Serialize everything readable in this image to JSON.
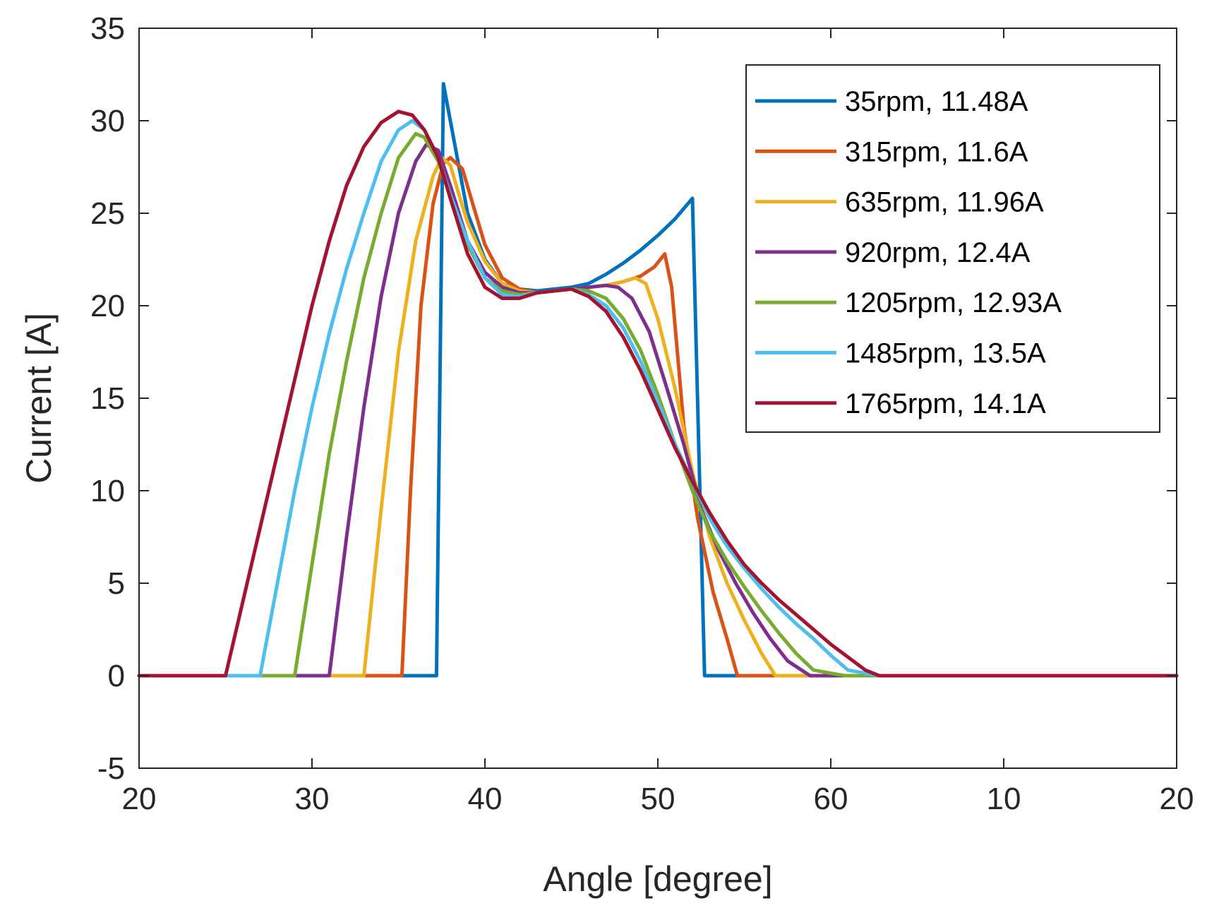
{
  "chart_data": {
    "type": "line",
    "title": "",
    "xlabel": "Angle [degree]",
    "ylabel": "Current [A]",
    "xlim": [
      0,
      60
    ],
    "ylim": [
      -5,
      35
    ],
    "x_ticks": [
      0,
      10,
      20,
      30,
      40,
      50,
      60
    ],
    "x_tick_labels": [
      "20",
      "30",
      "40",
      "50",
      "60",
      "10",
      "20"
    ],
    "y_ticks": [
      -5,
      0,
      5,
      10,
      15,
      20,
      25,
      30,
      35
    ],
    "y_tick_labels": [
      "-5",
      "0",
      "5",
      "10",
      "15",
      "20",
      "25",
      "30",
      "35"
    ],
    "grid": false,
    "legend_position": "top-right",
    "colors": {
      "axis": "#262626",
      "background": "#ffffff"
    },
    "series": [
      {
        "name": "35rpm, 11.48A",
        "color": "#0072BD",
        "points": [
          [
            0,
            0
          ],
          [
            17.2,
            0
          ],
          [
            17.6,
            32
          ],
          [
            18.2,
            29
          ],
          [
            19,
            25
          ],
          [
            20,
            22.5
          ],
          [
            21,
            21.2
          ],
          [
            22,
            20.9
          ],
          [
            23,
            20.8
          ],
          [
            24,
            20.9
          ],
          [
            25,
            21
          ],
          [
            26,
            21.2
          ],
          [
            27,
            21.7
          ],
          [
            28,
            22.3
          ],
          [
            29,
            23
          ],
          [
            30,
            23.8
          ],
          [
            31,
            24.7
          ],
          [
            32,
            25.8
          ],
          [
            32.7,
            0
          ],
          [
            60,
            0
          ]
        ]
      },
      {
        "name": "315rpm, 11.6A",
        "color": "#D95319",
        "points": [
          [
            0,
            0
          ],
          [
            15.2,
            0
          ],
          [
            15.7,
            10
          ],
          [
            16.3,
            20
          ],
          [
            17,
            25.5
          ],
          [
            17.6,
            27.7
          ],
          [
            18,
            28
          ],
          [
            18.7,
            27.4
          ],
          [
            19.3,
            25.5
          ],
          [
            20,
            23.3
          ],
          [
            21,
            21.5
          ],
          [
            22,
            20.9
          ],
          [
            23,
            20.7
          ],
          [
            24,
            20.8
          ],
          [
            25,
            20.9
          ],
          [
            26,
            21
          ],
          [
            27,
            21.1
          ],
          [
            28,
            21.3
          ],
          [
            29,
            21.6
          ],
          [
            29.8,
            22.1
          ],
          [
            30.4,
            22.8
          ],
          [
            30.8,
            21
          ],
          [
            31.5,
            13.5
          ],
          [
            32.3,
            8.5
          ],
          [
            33.2,
            4.5
          ],
          [
            34,
            2
          ],
          [
            34.6,
            0
          ],
          [
            60,
            0
          ]
        ]
      },
      {
        "name": "635rpm, 11.96A",
        "color": "#EDB120",
        "points": [
          [
            0,
            0
          ],
          [
            13,
            0
          ],
          [
            14,
            9
          ],
          [
            15,
            17.5
          ],
          [
            16,
            23.5
          ],
          [
            17,
            27
          ],
          [
            17.5,
            28
          ],
          [
            18,
            27.6
          ],
          [
            18.5,
            26
          ],
          [
            19,
            24.5
          ],
          [
            20,
            22.4
          ],
          [
            21,
            21.2
          ],
          [
            22,
            20.8
          ],
          [
            23,
            20.7
          ],
          [
            24,
            20.8
          ],
          [
            25,
            20.9
          ],
          [
            26,
            21
          ],
          [
            27,
            21.1
          ],
          [
            28,
            21.3
          ],
          [
            28.7,
            21.5
          ],
          [
            29.3,
            21.2
          ],
          [
            30,
            19.3
          ],
          [
            31,
            15.5
          ],
          [
            32,
            11
          ],
          [
            33,
            7.5
          ],
          [
            34,
            5
          ],
          [
            35,
            3
          ],
          [
            36,
            1.2
          ],
          [
            36.8,
            0
          ],
          [
            60,
            0
          ]
        ]
      },
      {
        "name": "920rpm, 12.4A",
        "color": "#7E2F8E",
        "points": [
          [
            0,
            0
          ],
          [
            11,
            0
          ],
          [
            12,
            7.5
          ],
          [
            13,
            14.5
          ],
          [
            14,
            20.5
          ],
          [
            15,
            25
          ],
          [
            16,
            27.8
          ],
          [
            16.6,
            28.7
          ],
          [
            17.3,
            28.4
          ],
          [
            18,
            26.5
          ],
          [
            19,
            23.5
          ],
          [
            20,
            21.8
          ],
          [
            21,
            21
          ],
          [
            22,
            20.7
          ],
          [
            23,
            20.7
          ],
          [
            24,
            20.8
          ],
          [
            25,
            20.9
          ],
          [
            26,
            21
          ],
          [
            27,
            21.1
          ],
          [
            27.7,
            21
          ],
          [
            28.5,
            20.4
          ],
          [
            29.5,
            18.6
          ],
          [
            30.5,
            15.6
          ],
          [
            31.5,
            12.5
          ],
          [
            32.5,
            9
          ],
          [
            33.5,
            6.8
          ],
          [
            34.5,
            5
          ],
          [
            35.5,
            3.4
          ],
          [
            36.5,
            2
          ],
          [
            37.5,
            0.8
          ],
          [
            38.8,
            0
          ],
          [
            60,
            0
          ]
        ]
      },
      {
        "name": "1205rpm, 12.93A",
        "color": "#77AC30",
        "points": [
          [
            0,
            0
          ],
          [
            9,
            0
          ],
          [
            10,
            6
          ],
          [
            11,
            12
          ],
          [
            12,
            17
          ],
          [
            13,
            21.5
          ],
          [
            14,
            25
          ],
          [
            15,
            28
          ],
          [
            16,
            29.3
          ],
          [
            16.5,
            29.1
          ],
          [
            17.3,
            27.8
          ],
          [
            18,
            26
          ],
          [
            19,
            23.3
          ],
          [
            20,
            21.5
          ],
          [
            21,
            20.8
          ],
          [
            22,
            20.6
          ],
          [
            23,
            20.7
          ],
          [
            24,
            20.8
          ],
          [
            25,
            20.9
          ],
          [
            26,
            20.8
          ],
          [
            27,
            20.4
          ],
          [
            28,
            19.3
          ],
          [
            29,
            17.6
          ],
          [
            30,
            15.2
          ],
          [
            31,
            12.5
          ],
          [
            32,
            10
          ],
          [
            33,
            7.8
          ],
          [
            34,
            6.2
          ],
          [
            35,
            4.8
          ],
          [
            36,
            3.5
          ],
          [
            37,
            2.3
          ],
          [
            38,
            1.2
          ],
          [
            39,
            0.3
          ],
          [
            40.8,
            0
          ],
          [
            60,
            0
          ]
        ]
      },
      {
        "name": "1485rpm, 13.5A",
        "color": "#4DBEEE",
        "points": [
          [
            0,
            0
          ],
          [
            7,
            0
          ],
          [
            8,
            5
          ],
          [
            9,
            10
          ],
          [
            10,
            14.5
          ],
          [
            11,
            18.5
          ],
          [
            12,
            22
          ],
          [
            13,
            25
          ],
          [
            14,
            27.8
          ],
          [
            15,
            29.5
          ],
          [
            15.8,
            30
          ],
          [
            16.5,
            29.5
          ],
          [
            17.3,
            28
          ],
          [
            18,
            26
          ],
          [
            19,
            23.5
          ],
          [
            20,
            21.5
          ],
          [
            21,
            20.6
          ],
          [
            22,
            20.5
          ],
          [
            23,
            20.7
          ],
          [
            24,
            20.8
          ],
          [
            25,
            20.9
          ],
          [
            26,
            20.6
          ],
          [
            27,
            20
          ],
          [
            28,
            18.8
          ],
          [
            29,
            17
          ],
          [
            30,
            14.8
          ],
          [
            31,
            12.5
          ],
          [
            32,
            10.5
          ],
          [
            33,
            8.5
          ],
          [
            34,
            7
          ],
          [
            35,
            5.8
          ],
          [
            36,
            4.7
          ],
          [
            37,
            3.7
          ],
          [
            38,
            2.8
          ],
          [
            39,
            2
          ],
          [
            40,
            1.1
          ],
          [
            41,
            0.3
          ],
          [
            42.8,
            0
          ],
          [
            60,
            0
          ]
        ]
      },
      {
        "name": "1765rpm, 14.1A",
        "color": "#A2142F",
        "points": [
          [
            0,
            0
          ],
          [
            5,
            0
          ],
          [
            6,
            4
          ],
          [
            7,
            8
          ],
          [
            8,
            12
          ],
          [
            9,
            16
          ],
          [
            10,
            20
          ],
          [
            11,
            23.5
          ],
          [
            12,
            26.5
          ],
          [
            13,
            28.6
          ],
          [
            14,
            29.9
          ],
          [
            15,
            30.5
          ],
          [
            15.8,
            30.3
          ],
          [
            16.5,
            29.5
          ],
          [
            17.3,
            28
          ],
          [
            18,
            25.8
          ],
          [
            19,
            22.8
          ],
          [
            20,
            21
          ],
          [
            21,
            20.4
          ],
          [
            22,
            20.4
          ],
          [
            23,
            20.7
          ],
          [
            24,
            20.8
          ],
          [
            25,
            20.9
          ],
          [
            26,
            20.5
          ],
          [
            27,
            19.7
          ],
          [
            28,
            18.3
          ],
          [
            29,
            16.5
          ],
          [
            30,
            14.4
          ],
          [
            31,
            12.3
          ],
          [
            32,
            10.5
          ],
          [
            33,
            8.8
          ],
          [
            34,
            7.3
          ],
          [
            35,
            6
          ],
          [
            36,
            5
          ],
          [
            37,
            4.1
          ],
          [
            38,
            3.3
          ],
          [
            39,
            2.5
          ],
          [
            40,
            1.7
          ],
          [
            41,
            1
          ],
          [
            42,
            0.3
          ],
          [
            42.8,
            0
          ],
          [
            60,
            0
          ]
        ]
      }
    ]
  }
}
